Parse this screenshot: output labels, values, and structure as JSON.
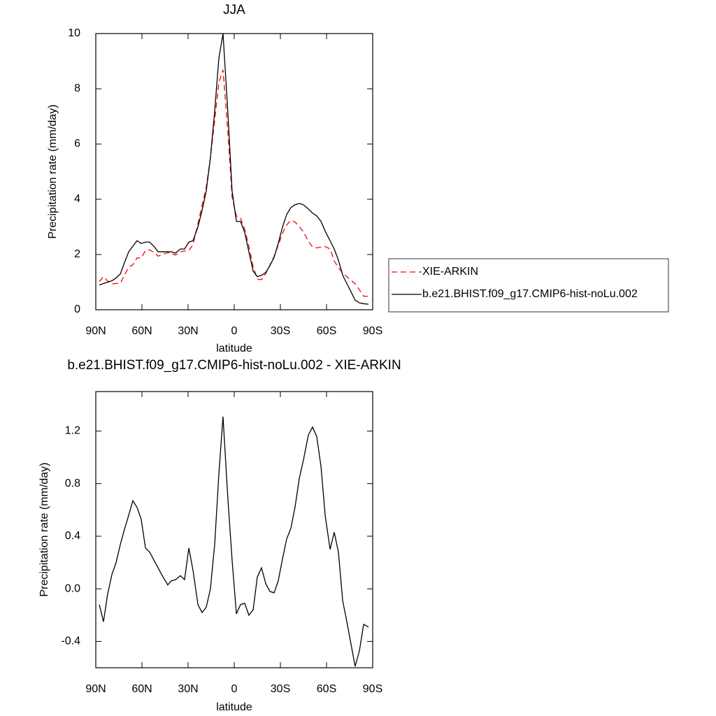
{
  "chart_data": [
    {
      "type": "line",
      "title": "JJA",
      "x_label": "latitude",
      "y_label": "Precipitation rate (mm/day)",
      "x": [
        87.7,
        85,
        82.3,
        79.5,
        76.8,
        74,
        71.4,
        68.6,
        65.9,
        63.2,
        60.5,
        57.7,
        55,
        52.3,
        49.5,
        46.8,
        43.2,
        41,
        38.2,
        35,
        32.3,
        29.5,
        26.8,
        23.6,
        20.9,
        18.2,
        15.5,
        12.7,
        10,
        7.3,
        4.1,
        1.4,
        -1.4,
        -4.1,
        -6.8,
        -9.5,
        -12.3,
        -15,
        -17.7,
        -20.5,
        -23.2,
        -25.9,
        -28.6,
        -31.4,
        -34.1,
        -36.8,
        -39.5,
        -42.3,
        -45,
        -48.2,
        -50.9,
        -53.6,
        -56.4,
        -59.1,
        -62.3,
        -65,
        -67.7,
        -70.5,
        -73.2,
        -75.9,
        -78.6,
        -81.4,
        -84.1,
        -87.3
      ],
      "series": [
        {
          "name": "XIE-ARKIN",
          "color": "#ff0000",
          "dash": true,
          "values": [
            1.02,
            1.2,
            1.04,
            0.94,
            0.95,
            0.96,
            1.25,
            1.54,
            1.63,
            1.88,
            1.87,
            2.14,
            2.17,
            2.08,
            1.94,
            2.0,
            2.07,
            2.04,
            1.98,
            2.1,
            2.13,
            2.14,
            2.36,
            3.12,
            3.78,
            4.44,
            5.5,
            6.86,
            8.23,
            8.69,
            6.42,
            4.08,
            3.39,
            3.32,
            2.91,
            2.3,
            1.56,
            1.11,
            1.09,
            1.31,
            1.62,
            1.93,
            2.34,
            2.77,
            3.07,
            3.24,
            3.18,
            3.01,
            2.82,
            2.48,
            2.27,
            2.24,
            2.27,
            2.29,
            2.2,
            1.77,
            1.52,
            1.34,
            1.2,
            1.07,
            0.94,
            0.72,
            0.49,
            0.49
          ]
        },
        {
          "name": "b.e21.BHIST.f09_g17.CMIP6-hist-noLu.002",
          "color": "#000000",
          "dash": false,
          "values": [
            0.9,
            0.95,
            1.0,
            1.05,
            1.15,
            1.3,
            1.7,
            2.1,
            2.3,
            2.5,
            2.4,
            2.45,
            2.45,
            2.3,
            2.1,
            2.1,
            2.1,
            2.1,
            2.05,
            2.2,
            2.2,
            2.45,
            2.5,
            3.0,
            3.6,
            4.3,
            5.5,
            7.2,
            9.1,
            10.0,
            7.1,
            4.3,
            3.2,
            3.2,
            2.8,
            2.1,
            1.4,
            1.2,
            1.25,
            1.35,
            1.6,
            1.9,
            2.4,
            3.0,
            3.45,
            3.7,
            3.8,
            3.85,
            3.8,
            3.65,
            3.5,
            3.4,
            3.2,
            2.85,
            2.5,
            2.2,
            1.8,
            1.25,
            0.95,
            0.65,
            0.35,
            0.25,
            0.22,
            0.2
          ]
        }
      ],
      "xlim": [
        90,
        -90
      ],
      "xticks": [
        {
          "value": 90,
          "label": "90N"
        },
        {
          "value": 60,
          "label": "60N"
        },
        {
          "value": 30,
          "label": "30N"
        },
        0,
        {
          "value": -30,
          "label": "30S"
        },
        {
          "value": -60,
          "label": "60S"
        },
        {
          "value": -90,
          "label": "90S"
        }
      ],
      "ylim": [
        0,
        10
      ],
      "yticks": [
        0,
        2,
        4,
        6,
        8,
        10
      ],
      "legend": "right"
    },
    {
      "type": "line",
      "title": "b.e21.BHIST.f09_g17.CMIP6-hist-noLu.002 - XIE-ARKIN",
      "x_label": "latitude",
      "y_label": "Precipitation rate (mm/day)",
      "x": [
        87.7,
        85,
        82.3,
        79.5,
        76.8,
        74,
        71.4,
        68.6,
        65.9,
        63.2,
        60.5,
        57.7,
        55,
        52.3,
        49.5,
        46.8,
        43.2,
        41,
        38.2,
        35,
        32.3,
        29.5,
        26.8,
        23.6,
        20.9,
        18.2,
        15.5,
        12.7,
        10,
        7.3,
        4.1,
        1.4,
        -1.4,
        -4.1,
        -6.8,
        -9.5,
        -12.3,
        -15,
        -17.7,
        -20.5,
        -23.2,
        -25.9,
        -28.6,
        -31.4,
        -34.1,
        -36.8,
        -39.5,
        -42.3,
        -45,
        -48.2,
        -50.9,
        -53.6,
        -56.4,
        -59.1,
        -62.3,
        -65,
        -67.7,
        -70.5,
        -73.2,
        -75.9,
        -78.6,
        -81.4,
        -84.1,
        -87.3
      ],
      "values": [
        -0.12,
        -0.25,
        -0.04,
        0.11,
        0.2,
        0.34,
        0.45,
        0.56,
        0.67,
        0.62,
        0.53,
        0.31,
        0.28,
        0.22,
        0.16,
        0.1,
        0.03,
        0.06,
        0.07,
        0.1,
        0.07,
        0.31,
        0.14,
        -0.12,
        -0.18,
        -0.14,
        0.0,
        0.34,
        0.87,
        1.31,
        0.68,
        0.22,
        -0.19,
        -0.12,
        -0.11,
        -0.2,
        -0.16,
        0.09,
        0.16,
        0.04,
        -0.02,
        -0.03,
        0.06,
        0.23,
        0.38,
        0.46,
        0.62,
        0.84,
        0.98,
        1.17,
        1.23,
        1.16,
        0.93,
        0.56,
        0.3,
        0.43,
        0.28,
        -0.09,
        -0.25,
        -0.42,
        -0.59,
        -0.47,
        -0.27,
        -0.29
      ],
      "color": "#000000",
      "xlim": [
        90,
        -90
      ],
      "xticks": [
        {
          "value": 90,
          "label": "90N"
        },
        {
          "value": 60,
          "label": "60N"
        },
        {
          "value": 30,
          "label": "30N"
        },
        0,
        {
          "value": -30,
          "label": "30S"
        },
        {
          "value": -60,
          "label": "60S"
        },
        {
          "value": -90,
          "label": "90S"
        }
      ],
      "ylim": [
        -0.6,
        1.5
      ],
      "yticks": [
        -0.4,
        {
          "value": 0,
          "label": "0.0"
        },
        0.4,
        0.8,
        1.2
      ]
    }
  ]
}
